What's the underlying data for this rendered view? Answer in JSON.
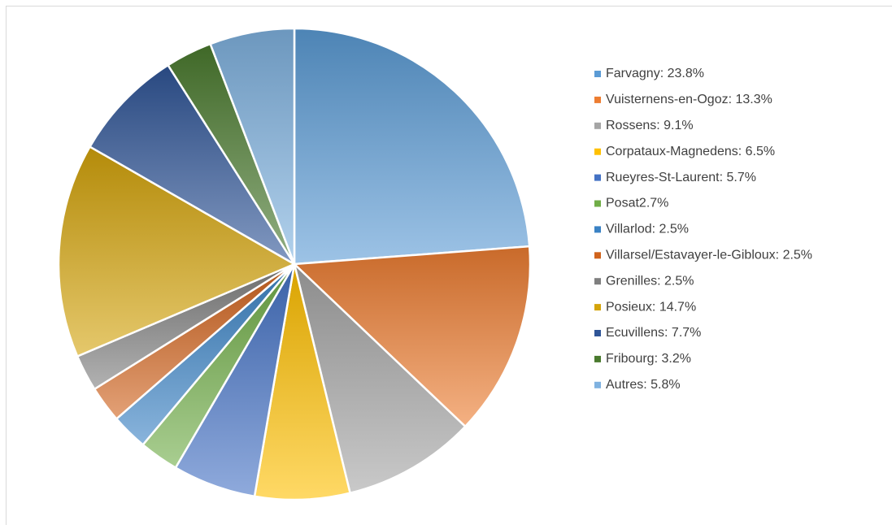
{
  "chart_data": {
    "type": "pie",
    "categories": [
      "Farvagny: 23.8%",
      "Vuisternens-en-Ogoz: 13.3%",
      "Rossens: 9.1%",
      "Corpataux-Magnedens: 6.5%",
      "Rueyres-St-Laurent: 5.7%",
      "Posat2.7%",
      "Villarlod: 2.5%",
      "Villarsel/Estavayer-le-Gibloux: 2.5%",
      "Grenilles: 2.5%",
      "Posieux: 14.7%",
      "Ecuvillens: 7.7%",
      "Fribourg: 3.2%",
      "Autres: 5.8%"
    ],
    "values": [
      23.8,
      13.3,
      9.1,
      6.5,
      5.7,
      2.7,
      2.5,
      2.5,
      2.5,
      14.7,
      7.7,
      3.2,
      5.8
    ],
    "colors": [
      "#5b9bd5",
      "#ed7d31",
      "#a5a5a5",
      "#ffc000",
      "#4472c4",
      "#70ad47",
      "#3a82c4",
      "#d0631c",
      "#7f7f7f",
      "#d4a40a",
      "#2f5597",
      "#4a7a2e",
      "#7fb2e0"
    ],
    "legend": "right"
  }
}
